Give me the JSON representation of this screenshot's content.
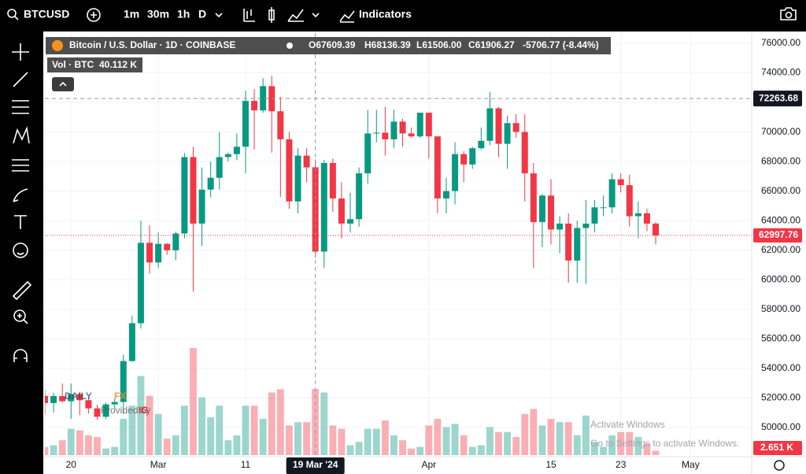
{
  "toolbar": {
    "symbol": "BTCUSD",
    "intervals": [
      "1m",
      "30m",
      "1h",
      "D"
    ],
    "indicators": "Indicators"
  },
  "chart_data": {
    "type": "candlestick",
    "legend": {
      "title": "Bitcoin / U.S. Dollar · 1D · COINBASE",
      "open": "O67609.39",
      "high": "H68136.39",
      "low": "L61506.00",
      "close": "C61906.27",
      "change": "-5706.77 (-8.44%)",
      "volume_name": "Vol · BTC",
      "volume": "40.112 K"
    },
    "x": [
      "2024-02-17",
      "2024-02-18",
      "2024-02-19",
      "2024-02-20",
      "2024-02-21",
      "2024-02-22",
      "2024-02-23",
      "2024-02-24",
      "2024-02-25",
      "2024-02-26",
      "2024-02-27",
      "2024-02-28",
      "2024-02-29",
      "2024-03-01",
      "2024-03-02",
      "2024-03-03",
      "2024-03-04",
      "2024-03-05",
      "2024-03-06",
      "2024-03-07",
      "2024-03-08",
      "2024-03-09",
      "2024-03-10",
      "2024-03-11",
      "2024-03-12",
      "2024-03-13",
      "2024-03-14",
      "2024-03-15",
      "2024-03-16",
      "2024-03-17",
      "2024-03-18",
      "2024-03-19",
      "2024-03-20",
      "2024-03-21",
      "2024-03-22",
      "2024-03-23",
      "2024-03-24",
      "2024-03-25",
      "2024-03-26",
      "2024-03-27",
      "2024-03-28",
      "2024-03-29",
      "2024-03-30",
      "2024-03-31",
      "2024-04-01",
      "2024-04-02",
      "2024-04-03",
      "2024-04-04",
      "2024-04-05",
      "2024-04-06",
      "2024-04-07",
      "2024-04-08",
      "2024-04-09",
      "2024-04-10",
      "2024-04-11",
      "2024-04-12",
      "2024-04-13",
      "2024-04-14",
      "2024-04-15",
      "2024-04-16",
      "2024-04-17",
      "2024-04-18",
      "2024-04-19",
      "2024-04-20",
      "2024-04-21",
      "2024-04-22",
      "2024-04-23",
      "2024-04-24",
      "2024-04-25",
      "2024-04-26",
      "2024-04-27"
    ],
    "open": [
      52140,
      51660,
      52130,
      51780,
      52270,
      51850,
      51300,
      50730,
      51570,
      51730,
      54500,
      57060,
      62500,
      61170,
      62430,
      61990,
      63130,
      68300,
      63800,
      66100,
      66900,
      68300,
      68500,
      69000,
      72100,
      71460,
      73100,
      71400,
      69500,
      65300,
      68400,
      67609.39,
      61906.27,
      67900,
      65500,
      63800,
      64100,
      67200,
      69900,
      69950,
      69500,
      70700,
      69900,
      69700,
      71300,
      69700,
      65500,
      66000,
      68500,
      67800,
      68900,
      69400,
      71600,
      69200,
      70600,
      70000,
      67200,
      63900,
      65700,
      63400,
      63800,
      61300,
      63500,
      63800,
      64900,
      64900,
      66800,
      66400,
      64300,
      64500,
      63800
    ],
    "high": [
      52570,
      52360,
      52990,
      52980,
      52380,
      52010,
      51540,
      51680,
      51960,
      54940,
      57570,
      64000,
      63680,
      63200,
      62480,
      63260,
      68560,
      69000,
      67600,
      67990,
      69990,
      68600,
      69900,
      72800,
      72900,
      73640,
      73800,
      72360,
      70000,
      68900,
      68900,
      68136.39,
      68100,
      68200,
      66600,
      65900,
      67600,
      71500,
      71500,
      71700,
      71500,
      70900,
      70300,
      71300,
      71300,
      69700,
      66900,
      69300,
      68700,
      69000,
      70300,
      72700,
      71700,
      71100,
      71200,
      71200,
      67900,
      65800,
      66800,
      64300,
      64500,
      64000,
      65400,
      65400,
      65700,
      67200,
      67200,
      67100,
      65300,
      64800,
      63900
    ],
    "low": [
      50900,
      51010,
      51700,
      50580,
      50830,
      50950,
      50530,
      50580,
      51290,
      50940,
      54450,
      56700,
      60400,
      60800,
      61680,
      61320,
      62800,
      59200,
      62300,
      65580,
      66100,
      68000,
      68100,
      67200,
      68800,
      71300,
      68600,
      65600,
      64800,
      64500,
      66600,
      61506,
      60800,
      64600,
      62800,
      63200,
      63600,
      66500,
      69300,
      68400,
      68900,
      69000,
      69600,
      69600,
      68200,
      64500,
      64500,
      65100,
      66600,
      67500,
      68800,
      69100,
      68300,
      67500,
      69600,
      65300,
      60800,
      62200,
      62400,
      61800,
      59800,
      59800,
      59700,
      63200,
      64300,
      64500,
      65900,
      63600,
      62800,
      63300,
      62400
    ],
    "close": [
      51660,
      52130,
      51780,
      52270,
      51850,
      51300,
      50730,
      51570,
      51730,
      54500,
      57060,
      62500,
      61170,
      62430,
      61990,
      63130,
      68300,
      63800,
      66100,
      66900,
      68300,
      68500,
      69000,
      72100,
      71460,
      73100,
      71400,
      69500,
      65300,
      68400,
      67600,
      61906.27,
      67900,
      65500,
      63800,
      64100,
      67200,
      69900,
      69950,
      69500,
      70700,
      69900,
      69700,
      71300,
      69700,
      65500,
      66000,
      68500,
      67800,
      68900,
      69400,
      71600,
      69200,
      70600,
      70000,
      67200,
      63900,
      65700,
      63400,
      63800,
      61300,
      63500,
      63800,
      64900,
      64900,
      66800,
      66400,
      64300,
      64500,
      63800,
      62997.76
    ],
    "up_color": "#089981",
    "down_color": "#f23645",
    "volume": {
      "values": [
        5,
        6,
        9,
        16,
        15,
        12,
        11,
        4,
        5,
        22,
        30,
        48,
        36,
        25,
        10,
        12,
        30,
        65,
        35,
        23,
        30,
        9,
        12,
        30,
        30,
        22,
        38,
        40,
        18,
        20,
        20,
        40.112,
        38,
        18,
        16,
        6,
        8,
        16,
        16,
        21,
        12,
        9,
        4,
        5,
        18,
        22,
        17,
        19,
        12,
        5,
        6,
        17,
        14,
        14,
        11,
        25,
        28,
        18,
        22,
        20,
        20,
        12,
        24,
        8,
        5,
        12,
        14,
        14,
        11,
        7,
        2.651
      ],
      "last_label": "2.651 K"
    },
    "xlim": [
      "2024-02-17",
      "2024-05-08"
    ],
    "xticks": [
      {
        "value": "2024-02-20",
        "label": "20"
      },
      {
        "value": "2024-03-01",
        "label": "Mar"
      },
      {
        "value": "2024-03-11",
        "label": "11"
      },
      {
        "value": "2024-04-01",
        "label": "Apr"
      },
      {
        "value": "2024-04-15",
        "label": "15"
      },
      {
        "value": "2024-04-23",
        "label": "23"
      },
      {
        "value": "2024-05-01",
        "label": "May"
      }
    ],
    "ylim": [
      48030,
      76690
    ],
    "yticks": [
      {
        "value": 50000,
        "label": "50000.00"
      },
      {
        "value": 52000,
        "label": "52000.00"
      },
      {
        "value": 54000,
        "label": "54000.00"
      },
      {
        "value": 56000,
        "label": "56000.00"
      },
      {
        "value": 58000,
        "label": "58000.00"
      },
      {
        "value": 60000,
        "label": "60000.00"
      },
      {
        "value": 62000,
        "label": "62000.00"
      },
      {
        "value": 64000,
        "label": "64000.00"
      },
      {
        "value": 66000,
        "label": "66000.00"
      },
      {
        "value": 68000,
        "label": "68000.00"
      },
      {
        "value": 70000,
        "label": "70000.00"
      },
      {
        "value": 72000,
        "label": "72000.00"
      },
      {
        "value": 74000,
        "label": "74000.00"
      },
      {
        "value": 76000,
        "label": "76000.00"
      }
    ],
    "grid": true,
    "crosshair": {
      "x": "2024-03-19",
      "x_label": "19 Mar '24",
      "price": 72263.68
    }
  },
  "logo": {
    "brand_a": "DAILY",
    "brand_b": "FX",
    "provided": "Provided by",
    "ig": "IG"
  },
  "watermark": {
    "title": "Activate Windows",
    "text": "Go to Settings to activate Windows."
  }
}
